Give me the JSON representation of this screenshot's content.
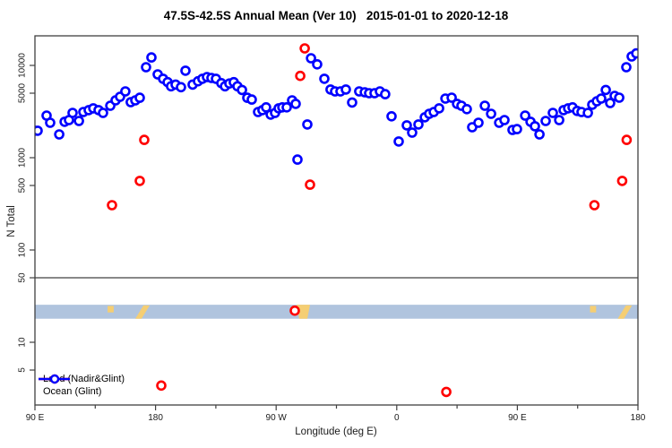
{
  "chart_data": {
    "type": "scatter",
    "title": "47.5S-42.5S Annual Mean (Ver 10)   2015-01-01 to 2020-12-18",
    "xlabel": "Longitude (deg E)",
    "ylabel": "N Total",
    "x_axis": {
      "range": [
        90,
        540
      ],
      "ticks_major": [
        {
          "lon": 90,
          "label": "90 E"
        },
        {
          "lon": 180,
          "label": "180"
        },
        {
          "lon": 270,
          "label": "90 W"
        },
        {
          "lon": 360,
          "label": "0"
        },
        {
          "lon": 450,
          "label": "90 E"
        },
        {
          "lon": 540,
          "label": "180"
        }
      ],
      "ticks_minor_lons": [
        135,
        225,
        315,
        405,
        495
      ]
    },
    "y_axis": {
      "scale": "log",
      "range": [
        2,
        21000
      ],
      "ticks": [
        {
          "value": 10000,
          "label": "10000"
        },
        {
          "value": 5000,
          "label": "5000"
        },
        {
          "value": 1000,
          "label": "1000"
        },
        {
          "value": 500,
          "label": "500"
        },
        {
          "value": 100,
          "label": "100"
        },
        {
          "value": 50,
          "label": "50"
        },
        {
          "value": 10,
          "label": "10"
        },
        {
          "value": 5,
          "label": "5"
        }
      ]
    },
    "separator_value": 50,
    "grid": "off",
    "legend": {
      "position": "bottom-left",
      "items": [
        {
          "label": "Land (Nadir&Glint)",
          "color": "#ff0000"
        },
        {
          "label": "Ocean (Glint)",
          "color": "#0000ff"
        }
      ]
    },
    "colors": {
      "land": "#ff0000",
      "ocean": "#0000ff",
      "band_ocean": "#b0c4de",
      "band_land": "#f5ce73",
      "frame": "#404040",
      "text": "#1a1a1a"
    },
    "map_band": {
      "description": "world-map strip of the 47.5S-42.5S latitude band",
      "value_range": [
        18,
        25.5
      ],
      "land_patches": [
        {
          "name": "tasmania-west-copy",
          "points": [
            [
              144.2,
              0.08
            ],
            [
              148.8,
              0.08
            ],
            [
              148.8,
              0.55
            ],
            [
              144.2,
              0.55
            ]
          ]
        },
        {
          "name": "new-zealand-west-copy",
          "points": [
            [
              164.9,
              1.0
            ],
            [
              169.5,
              1.0
            ],
            [
              175.6,
              0.05
            ],
            [
              171.0,
              0.05
            ]
          ]
        },
        {
          "name": "south-america",
          "points": [
            [
              285.2,
              0.0
            ],
            [
              295.3,
              0.0
            ],
            [
              293.3,
              1.0
            ],
            [
              287.2,
              1.0
            ]
          ]
        },
        {
          "name": "tasmania-east-copy",
          "points": [
            [
              504.2,
              0.08
            ],
            [
              508.8,
              0.08
            ],
            [
              508.8,
              0.55
            ],
            [
              504.2,
              0.55
            ]
          ]
        },
        {
          "name": "new-zealand-east-copy",
          "points": [
            [
              524.9,
              1.0
            ],
            [
              529.5,
              1.0
            ],
            [
              535.6,
              0.05
            ],
            [
              531.0,
              0.05
            ]
          ]
        }
      ]
    },
    "series": [
      {
        "name": "Ocean (Glint)",
        "marker": "open-circle",
        "color": "#0000ff",
        "points": [
          [
            90.0,
            1960
          ],
          [
            92.0,
            1960
          ],
          [
            98.7,
            2860
          ],
          [
            101.4,
            2390
          ],
          [
            108.1,
            1790
          ],
          [
            112.1,
            2450
          ],
          [
            115.4,
            2560
          ],
          [
            118.1,
            3060
          ],
          [
            122.8,
            2500
          ],
          [
            126.1,
            3130
          ],
          [
            130.1,
            3280
          ],
          [
            133.5,
            3430
          ],
          [
            137.5,
            3280
          ],
          [
            140.8,
            3060
          ],
          [
            146.2,
            3660
          ],
          [
            150.2,
            4180
          ],
          [
            153.5,
            4570
          ],
          [
            157.5,
            5230
          ],
          [
            161.5,
            4000
          ],
          [
            164.9,
            4180
          ],
          [
            168.2,
            4460
          ],
          [
            172.9,
            9560
          ],
          [
            176.9,
            12200
          ],
          [
            181.6,
            8000
          ],
          [
            185.6,
            7160
          ],
          [
            189.0,
            6580
          ],
          [
            191.6,
            5940
          ],
          [
            195.0,
            6200
          ],
          [
            199.0,
            5810
          ],
          [
            202.3,
            8770
          ],
          [
            207.7,
            6200
          ],
          [
            211.7,
            6730
          ],
          [
            215.0,
            7160
          ],
          [
            218.4,
            7480
          ],
          [
            221.7,
            7320
          ],
          [
            225.1,
            7160
          ],
          [
            229.1,
            6430
          ],
          [
            231.8,
            5940
          ],
          [
            235.1,
            6360
          ],
          [
            238.4,
            6580
          ],
          [
            241.1,
            5940
          ],
          [
            244.5,
            5420
          ],
          [
            248.5,
            4460
          ],
          [
            251.8,
            4270
          ],
          [
            256.5,
            3130
          ],
          [
            259.8,
            3280
          ],
          [
            262.5,
            3510
          ],
          [
            265.9,
            2930
          ],
          [
            269.2,
            3060
          ],
          [
            271.9,
            3430
          ],
          [
            274.6,
            3510
          ],
          [
            277.9,
            3510
          ],
          [
            281.9,
            4180
          ],
          [
            284.6,
            3830
          ],
          [
            285.9,
            955
          ],
          [
            293.3,
            2290
          ],
          [
            296.0,
            11970
          ],
          [
            300.6,
            10270
          ],
          [
            306.0,
            7160
          ],
          [
            310.6,
            5480
          ],
          [
            314.0,
            5230
          ],
          [
            318.0,
            5230
          ],
          [
            322.0,
            5480
          ],
          [
            326.7,
            3960
          ],
          [
            332.0,
            5230
          ],
          [
            336.1,
            5110
          ],
          [
            339.4,
            5000
          ],
          [
            343.4,
            5000
          ],
          [
            347.4,
            5230
          ],
          [
            351.4,
            4880
          ],
          [
            356.1,
            2810
          ],
          [
            361.5,
            1500
          ],
          [
            367.5,
            2240
          ],
          [
            371.5,
            1870
          ],
          [
            376.2,
            2290
          ],
          [
            380.9,
            2740
          ],
          [
            384.2,
            2990
          ],
          [
            387.6,
            3130
          ],
          [
            391.6,
            3430
          ],
          [
            396.3,
            4370
          ],
          [
            401.0,
            4470
          ],
          [
            405.0,
            3830
          ],
          [
            408.3,
            3660
          ],
          [
            412.3,
            3360
          ],
          [
            416.3,
            2140
          ],
          [
            421.0,
            2390
          ],
          [
            425.7,
            3660
          ],
          [
            430.4,
            2990
          ],
          [
            436.4,
            2390
          ],
          [
            440.4,
            2560
          ],
          [
            446.4,
            2000
          ],
          [
            449.7,
            2040
          ],
          [
            455.8,
            2860
          ],
          [
            459.8,
            2450
          ],
          [
            463.1,
            2190
          ],
          [
            466.5,
            1790
          ],
          [
            471.1,
            2500
          ],
          [
            476.5,
            3060
          ],
          [
            481.2,
            2560
          ],
          [
            484.5,
            3280
          ],
          [
            487.9,
            3430
          ],
          [
            491.2,
            3510
          ],
          [
            494.6,
            3210
          ],
          [
            497.9,
            3130
          ],
          [
            502.6,
            3060
          ],
          [
            505.9,
            3750
          ],
          [
            509.3,
            4090
          ],
          [
            512.6,
            4370
          ],
          [
            516.0,
            5420
          ],
          [
            519.3,
            3910
          ],
          [
            522.6,
            4680
          ],
          [
            526.0,
            4470
          ],
          [
            531.3,
            9560
          ],
          [
            535.3,
            12500
          ],
          [
            538.7,
            13500
          ]
        ]
      },
      {
        "name": "Land (Nadir&Glint)",
        "marker": "open-circle",
        "color": "#ff0000",
        "points": [
          [
            147.5,
            306
          ],
          [
            168.2,
            560
          ],
          [
            171.6,
            1560
          ],
          [
            184.3,
            3.4
          ],
          [
            283.9,
            22
          ],
          [
            288.0,
            7700
          ],
          [
            291.3,
            15300
          ],
          [
            295.3,
            510
          ],
          [
            397.0,
            2.9
          ],
          [
            507.5,
            306
          ],
          [
            528.2,
            560
          ],
          [
            531.6,
            1560
          ]
        ]
      }
    ]
  }
}
